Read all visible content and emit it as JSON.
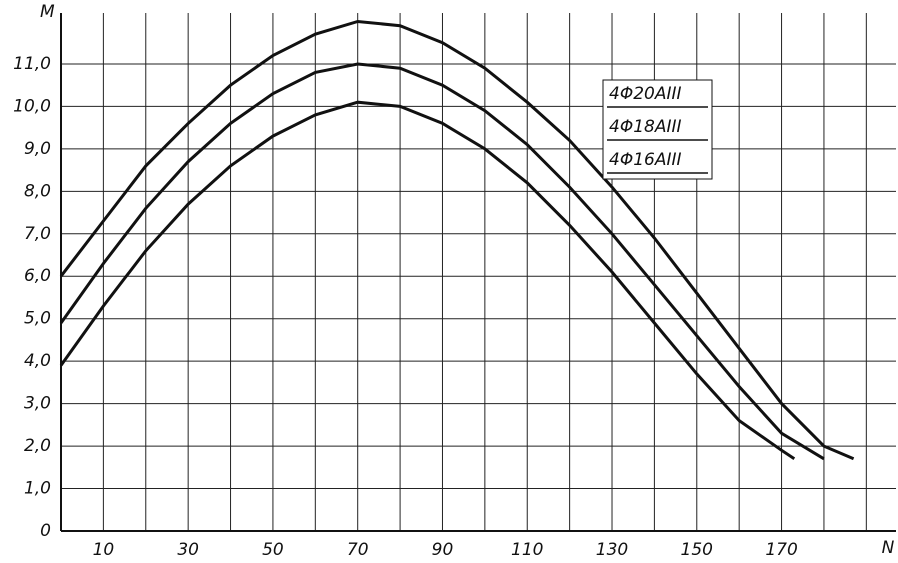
{
  "chart_data": {
    "type": "line",
    "ylabel": "M",
    "xlabel": "N",
    "xlim": [
      0,
      197
    ],
    "ylim": [
      0,
      12.2
    ],
    "xticks": [
      10,
      30,
      50,
      70,
      90,
      110,
      130,
      150,
      170
    ],
    "xgrid_minor": [
      20,
      40,
      60,
      80,
      100,
      120,
      140,
      160,
      180,
      190
    ],
    "yticks": [
      0,
      {
        "value": 1,
        "label": "1,0"
      },
      {
        "value": 2,
        "label": "2,0"
      },
      {
        "value": 3,
        "label": "3,0"
      },
      {
        "value": 4,
        "label": "4,0"
      },
      {
        "value": 5,
        "label": "5,0"
      },
      {
        "value": 6,
        "label": "6,0"
      },
      {
        "value": 7,
        "label": "7,0"
      },
      {
        "value": 8,
        "label": "8,0"
      },
      {
        "value": 9,
        "label": "9,0"
      },
      {
        "value": 10,
        "label": "10,0"
      },
      {
        "value": 11,
        "label": "11,0"
      }
    ],
    "grid": true,
    "series": [
      {
        "name": "4Φ20AIII",
        "color": "#111111",
        "x": [
          0,
          10,
          20,
          30,
          40,
          50,
          60,
          70,
          80,
          90,
          100,
          110,
          120,
          130,
          140,
          150,
          160,
          170,
          180,
          187
        ],
        "values": [
          6.0,
          7.3,
          8.6,
          9.6,
          10.5,
          11.2,
          11.7,
          12.0,
          11.9,
          11.5,
          10.9,
          10.1,
          9.2,
          8.1,
          6.9,
          5.6,
          4.3,
          3.0,
          2.0,
          1.7
        ]
      },
      {
        "name": "4Φ18AIII",
        "color": "#111111",
        "x": [
          0,
          10,
          20,
          30,
          40,
          50,
          60,
          70,
          80,
          90,
          100,
          110,
          120,
          130,
          140,
          150,
          160,
          170,
          180
        ],
        "values": [
          4.9,
          6.3,
          7.6,
          8.7,
          9.6,
          10.3,
          10.8,
          11.0,
          10.9,
          10.5,
          9.9,
          9.1,
          8.1,
          7.0,
          5.8,
          4.6,
          3.4,
          2.3,
          1.7
        ]
      },
      {
        "name": "4Φ16AIII",
        "color": "#111111",
        "x": [
          0,
          10,
          20,
          30,
          40,
          50,
          60,
          70,
          80,
          90,
          100,
          110,
          120,
          130,
          140,
          150,
          160,
          170,
          173
        ],
        "values": [
          3.9,
          5.3,
          6.6,
          7.7,
          8.6,
          9.3,
          9.8,
          10.1,
          10.0,
          9.6,
          9.0,
          8.2,
          7.2,
          6.1,
          4.9,
          3.7,
          2.6,
          1.9,
          1.7
        ]
      }
    ]
  }
}
